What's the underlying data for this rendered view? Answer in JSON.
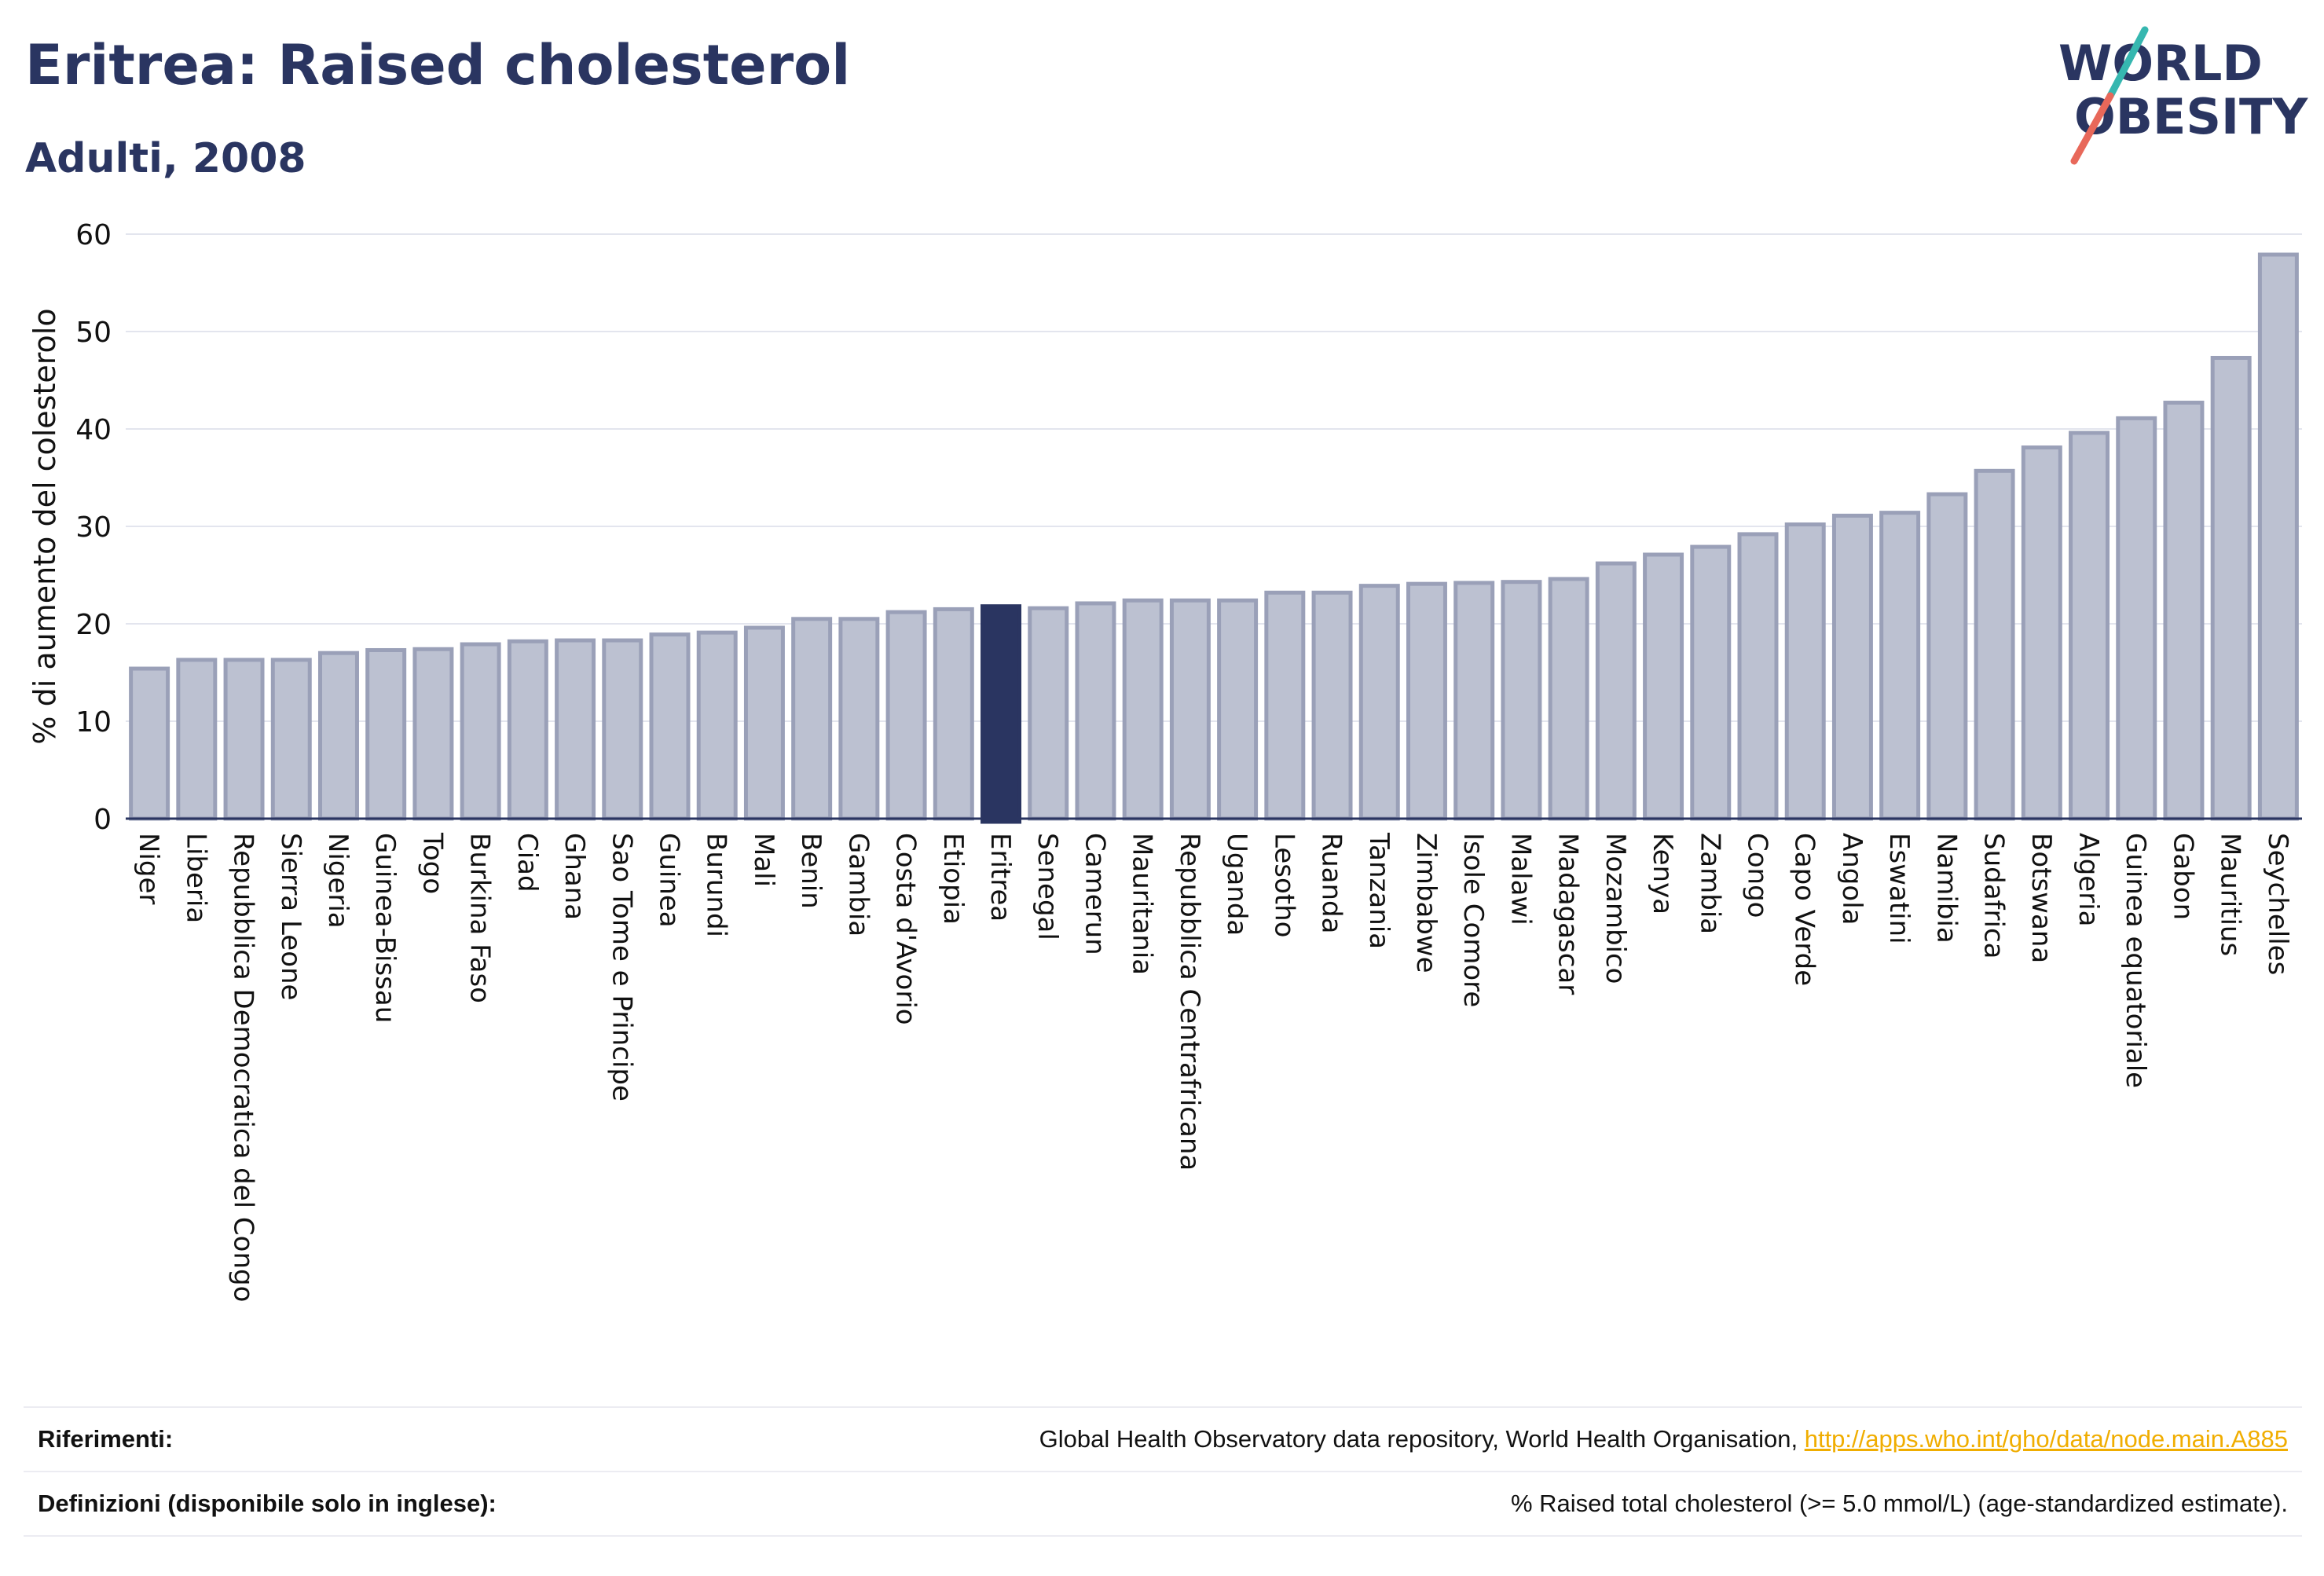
{
  "header": {
    "title": "Eritrea: Raised cholesterol",
    "subtitle": "Adulti, 2008",
    "logo_text": "WORLD OBESITY"
  },
  "colors": {
    "title": "#2a3561",
    "bar": "#bcc1d1",
    "bar_border": "#9aa0b8",
    "highlight": "#2a3561",
    "link": "#f0ad00",
    "logo_teal": "#36b7b0",
    "logo_red": "#e8685a"
  },
  "chart_data": {
    "type": "bar",
    "ylabel": "% di aumento del colesterolo",
    "xlabel": "",
    "ylim": [
      0,
      60
    ],
    "yticks": [
      0,
      10,
      20,
      30,
      40,
      50,
      60
    ],
    "grid": true,
    "highlight": "Eritrea",
    "categories": [
      "Niger",
      "Liberia",
      "Repubblica Democratica del Congo",
      "Sierra Leone",
      "Nigeria",
      "Guinea-Bissau",
      "Togo",
      "Burkina Faso",
      "Ciad",
      "Ghana",
      "Sao Tome e Principe",
      "Guinea",
      "Burundi",
      "Mali",
      "Benin",
      "Gambia",
      "Costa d'Avorio",
      "Etiopia",
      "Eritrea",
      "Senegal",
      "Camerun",
      "Mauritania",
      "Repubblica Centrafricana",
      "Uganda",
      "Lesotho",
      "Ruanda",
      "Tanzania",
      "Zimbabwe",
      "Isole Comore",
      "Malawi",
      "Madagascar",
      "Mozambico",
      "Kenya",
      "Zambia",
      "Congo",
      "Capo Verde",
      "Angola",
      "Eswatini",
      "Namibia",
      "Sudafrica",
      "Botswana",
      "Algeria",
      "Guinea equatoriale",
      "Gabon",
      "Mauritius",
      "Seychelles"
    ],
    "values": [
      15.4,
      16.3,
      16.3,
      16.3,
      17.0,
      17.3,
      17.4,
      17.9,
      18.2,
      18.3,
      18.3,
      18.9,
      19.1,
      19.6,
      20.5,
      20.5,
      21.2,
      21.5,
      21.8,
      21.6,
      22.1,
      22.4,
      22.4,
      22.4,
      23.2,
      23.2,
      23.9,
      24.1,
      24.2,
      24.3,
      24.6,
      26.2,
      27.1,
      27.9,
      29.2,
      30.2,
      31.1,
      31.4,
      33.3,
      35.7,
      38.1,
      39.6,
      41.1,
      42.7,
      47.3,
      57.9
    ]
  },
  "footer": {
    "references_label": "Riferimenti:",
    "references_text": "Global Health Observatory data repository, World Health Organisation, ",
    "references_link": "http://apps.who.int/gho/data/node.main.A885",
    "definitions_label": "Definizioni (disponibile solo in inglese):",
    "definitions_text": "% Raised total cholesterol (>= 5.0 mmol/L) (age-standardized estimate)."
  }
}
